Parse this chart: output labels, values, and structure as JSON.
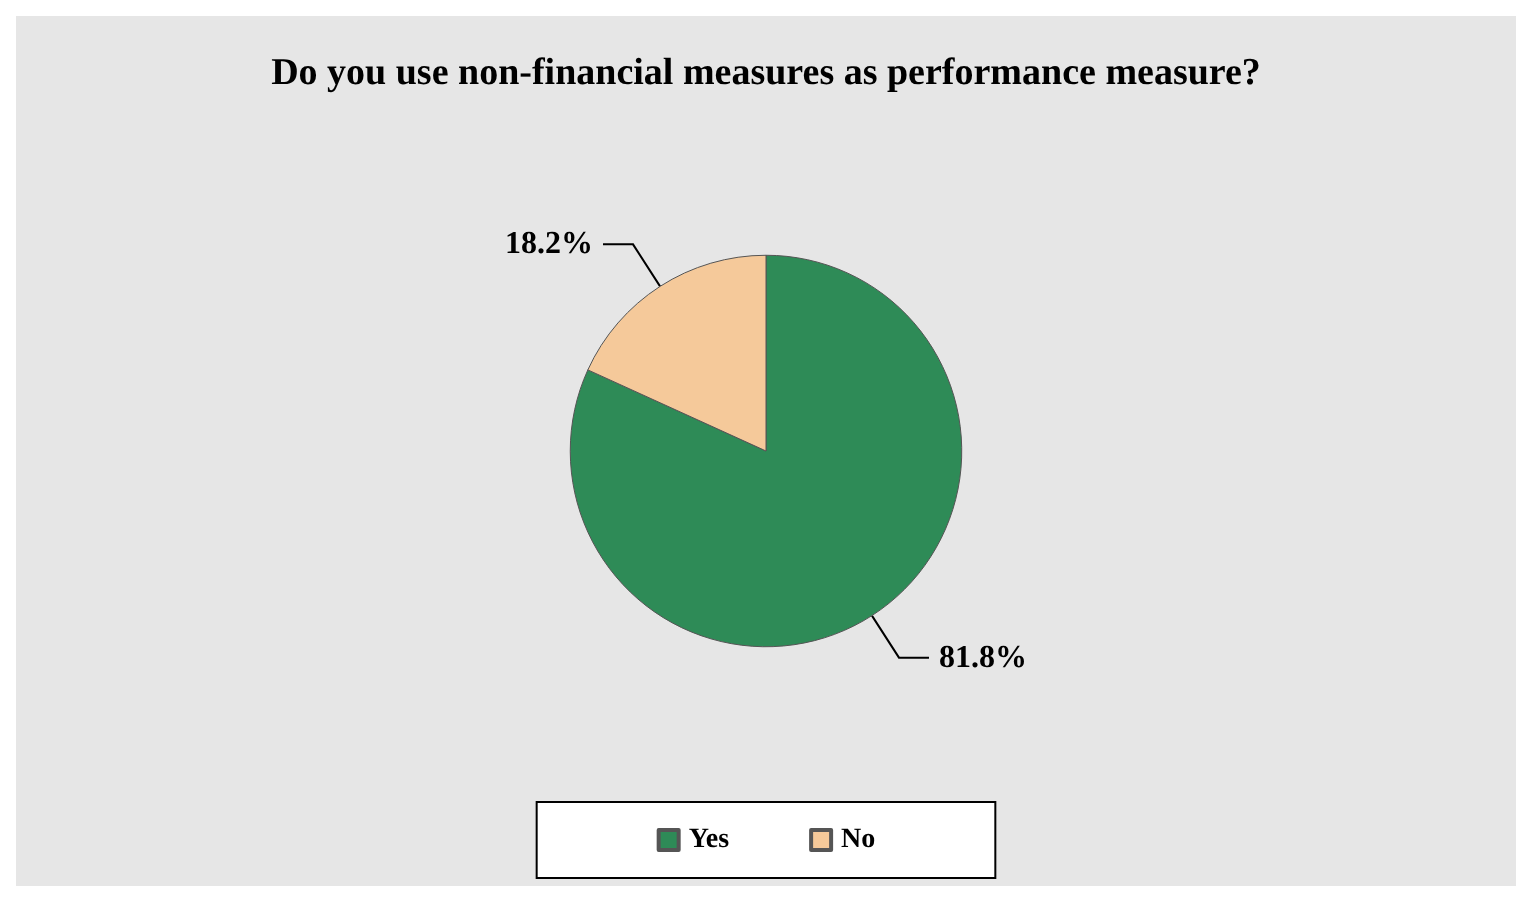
{
  "chart_data": {
    "type": "pie",
    "title": "Do you use non-financial measures as performance measure?",
    "categories": [
      "Yes",
      "No"
    ],
    "values": [
      81.8,
      18.2
    ],
    "value_labels": [
      "81.8%",
      "18.2%"
    ],
    "colors": [
      "#2e8b57",
      "#f5c99a"
    ],
    "legend": "bottom"
  }
}
